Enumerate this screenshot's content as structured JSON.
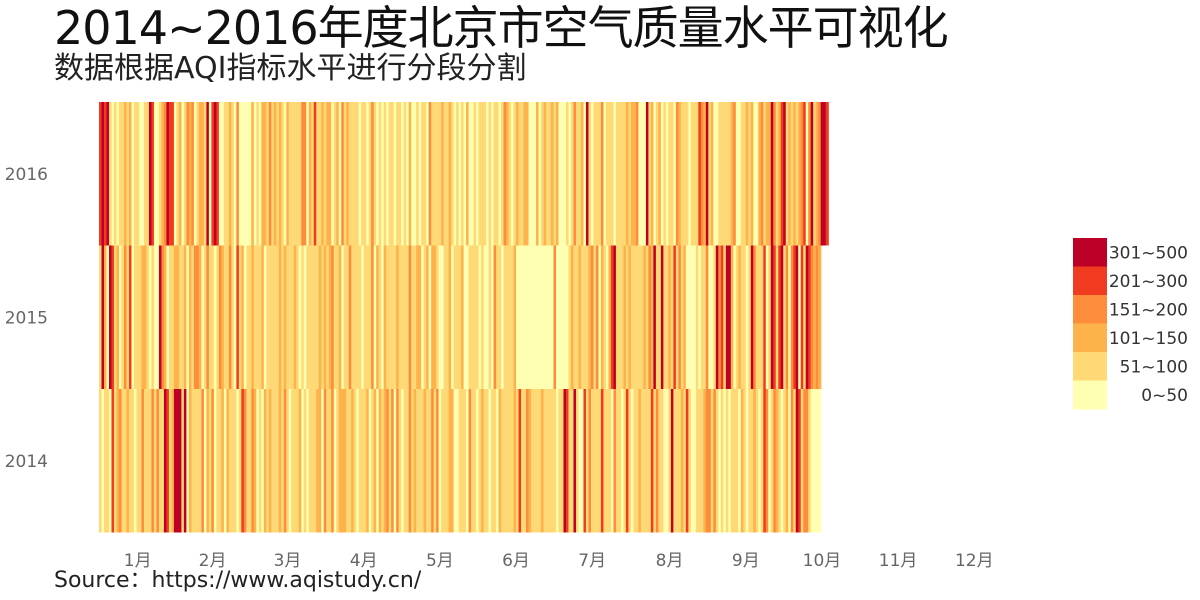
{
  "title": "2014~2016年度北京市空气质量水平可视化",
  "subtitle": "数据根据AQI指标水平进行分段分割",
  "source": "Source：https://www.aqistudy.cn/",
  "chart_data": {
    "type": "heatmap",
    "rows": [
      "2016",
      "2015",
      "2014"
    ],
    "months": [
      "1月",
      "2月",
      "3月",
      "4月",
      "5月",
      "6月",
      "7月",
      "8月",
      "9月",
      "10月",
      "11月",
      "12月"
    ],
    "legend": [
      {
        "label": "301~500",
        "color": "#bd0026"
      },
      {
        "label": "201~300",
        "color": "#f03b20"
      },
      {
        "label": "151~200",
        "color": "#fd8d3c"
      },
      {
        "label": "101~150",
        "color": "#feb24c"
      },
      {
        "label": "51~100",
        "color": "#fed976"
      },
      {
        "label": "0~50",
        "color": "#ffffb2"
      }
    ],
    "level_encoding": "0=0~50, 1=51~100, 2=101~150, 3=151~200, 4=201~300, 5=301~500",
    "series": [
      {
        "name": "2016",
        "levels": "4545101011212011001154001235440120132301221504540011210300000201022131212102111113302141121220120312111101101310101011011010200101103111121121010102001011101011013210121122000201211212000101311205101113011101111212230005120120101103211101114325120011111230011212002312253124512121234035123554"
      },
      {
        "name": "2015",
        "levels": "1520541201314011122101005320112211202133201311013211310412011211120111112121112101011111212123112011311110111302102111121111311220120221001120111200111101001031101111200000000000000030000012112111231302102451112121111121325115112141312000010113001534155201211015311140154145130345041543232"
      },
      {
        "name": "2014",
        "levels": "1011041231121101131113131154125551502111130213011202111014311320102121112131011120101112203113012221121011120120212313031011312111211313011122001110311012110110211111214113211112111110115411510041311114111031101410112111141311001511121410011123313101010111021011210143013210120315413310000"
      }
    ]
  }
}
